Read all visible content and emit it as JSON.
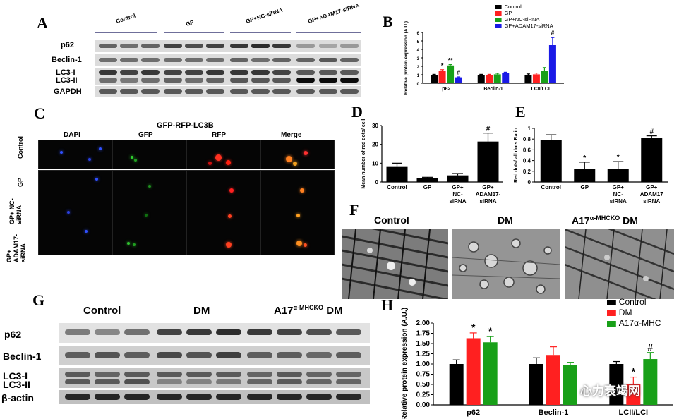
{
  "panels": {
    "A": "A",
    "B": "B",
    "C": "C",
    "D": "D",
    "E": "E",
    "F": "F",
    "G": "G",
    "H": "H"
  },
  "panel_a": {
    "groups": [
      "Control",
      "GP",
      "GP+NC-siRNA",
      "GP+ADAM17-siRNA"
    ],
    "rows": [
      "p62",
      "Beclin-1",
      "LC3-I",
      "LC3-II",
      "GAPDH"
    ]
  },
  "panel_c": {
    "title": "GFP-RFP-LC3B",
    "columns": [
      "DAPI",
      "GFP",
      "RFP",
      "Merge"
    ],
    "rows": [
      "Control",
      "GP",
      "GP+ NC-siRNA",
      "GP+ ADAM17-siRNA"
    ]
  },
  "panel_f": {
    "labels": [
      "Control",
      "DM",
      "A17"
    ],
    "sup": "α-MHCKO",
    "dm_suffix": "DM"
  },
  "panel_g": {
    "groups": [
      "Control",
      "DM",
      "A17"
    ],
    "sup": "α-MHCKO",
    "dm_suffix": "DM",
    "rows": [
      "p62",
      "Beclin-1",
      "LC3-I",
      "LC3-II",
      "β-actin"
    ]
  },
  "watermark": "心力衰竭网",
  "colors": {
    "black": "#000000",
    "red": "#ff2020",
    "green": "#18a018",
    "blue": "#1a1ae6",
    "darkgreen": "#228b22"
  },
  "chart_data": [
    {
      "id": "B",
      "type": "bar",
      "ylabel": "Relative protein expression (A.U.)",
      "ylim": [
        0,
        6
      ],
      "yticks": [
        0,
        1,
        2,
        3,
        4,
        5,
        6
      ],
      "categories": [
        "p62",
        "Beclin-1",
        "LCII/LCI"
      ],
      "series": [
        {
          "name": "Control",
          "color": "#000000",
          "values": [
            1.0,
            1.0,
            1.0
          ],
          "errors": [
            0.05,
            0.05,
            0.1
          ]
        },
        {
          "name": "GP",
          "color": "#ff2020",
          "values": [
            1.45,
            1.0,
            1.05
          ],
          "errors": [
            0.15,
            0.05,
            0.15
          ]
        },
        {
          "name": "GP+NC-siRNA",
          "color": "#18a018",
          "values": [
            2.1,
            1.05,
            1.5
          ],
          "errors": [
            0.1,
            0.12,
            0.35
          ]
        },
        {
          "name": "GP+ADAM17-siRNA",
          "color": "#1a1ae6",
          "values": [
            0.7,
            1.2,
            4.5
          ],
          "errors": [
            0.05,
            0.1,
            0.9
          ]
        }
      ],
      "annotations": [
        {
          "cat": 0,
          "series": 1,
          "text": "*"
        },
        {
          "cat": 0,
          "series": 2,
          "text": "**"
        },
        {
          "cat": 0,
          "series": 3,
          "text": "#"
        },
        {
          "cat": 2,
          "series": 3,
          "text": "#"
        }
      ],
      "legend": "top-right"
    },
    {
      "id": "D",
      "type": "bar",
      "ylabel": "Mean number of red dots/ cell",
      "ylim": [
        0,
        30
      ],
      "yticks": [
        0,
        10,
        20,
        30
      ],
      "categories": [
        "Control",
        "GP",
        "GP+ NC- siRNA",
        "GP+ ADAM17- siRNA"
      ],
      "values": [
        8,
        2,
        3.5,
        21.5
      ],
      "errors": [
        2,
        0.5,
        1,
        4.5
      ],
      "annotations": [
        {
          "cat": 3,
          "text": "#"
        }
      ]
    },
    {
      "id": "E",
      "type": "bar",
      "ylabel": "Red dots/ all dots Ratio",
      "ylim": [
        0,
        1.0
      ],
      "yticks": [
        0.0,
        0.2,
        0.4,
        0.6,
        0.8,
        1.0
      ],
      "categories": [
        "Control",
        "GP",
        "GP+ NC- siRNA",
        "GP+ ADAM17 siRNA"
      ],
      "values": [
        0.78,
        0.25,
        0.25,
        0.82
      ],
      "errors": [
        0.1,
        0.12,
        0.13,
        0.04
      ],
      "annotations": [
        {
          "cat": 1,
          "text": "*"
        },
        {
          "cat": 2,
          "text": "*"
        },
        {
          "cat": 3,
          "text": "#"
        }
      ]
    },
    {
      "id": "H",
      "type": "bar",
      "ylabel": "Relative protein expression (A.U.)",
      "ylim": [
        0,
        2.0
      ],
      "yticks": [
        "0.00",
        "0.25",
        "0.50",
        "0.75",
        "1.00",
        "1.25",
        "1.50",
        "1.75",
        "2.00"
      ],
      "categories": [
        "p62",
        "Beclin-1",
        "LCII/LCI"
      ],
      "series": [
        {
          "name": "Control",
          "color": "#000000",
          "values": [
            1.0,
            1.0,
            1.0
          ],
          "errors": [
            0.1,
            0.15,
            0.06
          ]
        },
        {
          "name": "DM",
          "color": "#ff2020",
          "values": [
            1.63,
            1.22,
            0.5
          ],
          "errors": [
            0.13,
            0.2,
            0.18
          ]
        },
        {
          "name": "A17α-MHC",
          "color": "#18a018",
          "values": [
            1.53,
            0.98,
            1.12
          ],
          "errors": [
            0.14,
            0.06,
            0.16
          ]
        }
      ],
      "annotations": [
        {
          "cat": 0,
          "series": 1,
          "text": "*"
        },
        {
          "cat": 0,
          "series": 2,
          "text": "*"
        },
        {
          "cat": 2,
          "series": 1,
          "text": "*"
        },
        {
          "cat": 2,
          "series": 2,
          "text": "#"
        }
      ],
      "legend": "top-right"
    }
  ]
}
